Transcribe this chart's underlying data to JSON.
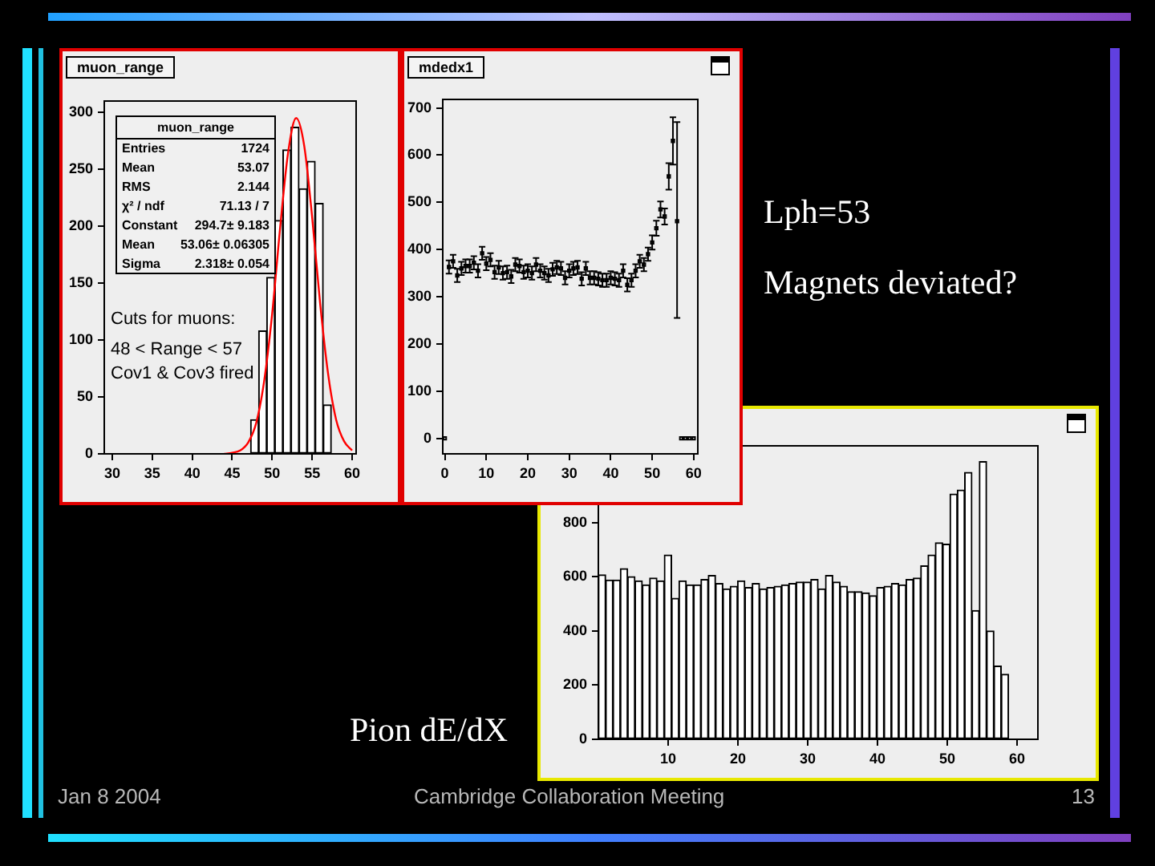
{
  "chart_data": [
    {
      "type": "histogram",
      "title": "muon_range",
      "bins": [
        47.3,
        48.31,
        49.32,
        50.33,
        51.34,
        52.35,
        53.36,
        54.37,
        55.38,
        56.39,
        57.4
      ],
      "values": [
        30,
        108,
        155,
        205,
        267,
        287,
        233,
        257,
        220,
        43
      ],
      "color": "#ffffff",
      "series": [
        {
          "type": "line",
          "color": "#ff0000",
          "x": [
            44,
            45,
            46,
            47,
            48,
            49,
            50,
            51,
            52,
            53,
            54,
            55,
            56,
            57,
            58,
            59,
            60
          ],
          "values": [
            0,
            1,
            3,
            10,
            27,
            64,
            123,
            199,
            265,
            295,
            271,
            208,
            132,
            70,
            30,
            11,
            3
          ]
        }
      ],
      "xlim": [
        29,
        60.5
      ],
      "ylim": [
        0,
        310
      ],
      "xticks": [
        30,
        35,
        40,
        45,
        50,
        55,
        60
      ],
      "yticks": [
        0,
        50,
        100,
        150,
        200,
        250,
        300
      ],
      "annotations": [
        "muon_range",
        "Entries",
        "1724",
        "Mean",
        "53.07",
        "RMS",
        "2.144",
        "χ² / ndf",
        "71.13 / 7",
        "Constant",
        "294.7± 9.183",
        "Mean",
        "53.06± 0.06305",
        "Sigma",
        "2.318± 0.054",
        "Cuts for muons:",
        "48 < Range < 57",
        "Cov1 & Cov3 fired"
      ]
    },
    {
      "type": "scatter",
      "title": "mdedx1",
      "x": [
        0,
        1,
        2,
        3,
        4,
        5,
        6,
        7,
        8,
        9,
        10,
        11,
        12,
        13,
        14,
        15,
        16,
        17,
        18,
        19,
        20,
        21,
        22,
        23,
        24,
        25,
        26,
        27,
        28,
        29,
        30,
        31,
        32,
        33,
        34,
        35,
        36,
        37,
        38,
        39,
        40,
        41,
        42,
        43,
        44,
        45,
        46,
        47,
        48,
        49,
        50,
        51,
        52,
        53,
        54,
        55,
        56,
        57,
        58,
        59,
        60
      ],
      "values": [
        0,
        363,
        375,
        345,
        360,
        365,
        365,
        372,
        355,
        392,
        370,
        378,
        352,
        362,
        350,
        352,
        343,
        368,
        365,
        352,
        355,
        350,
        368,
        355,
        350,
        345,
        358,
        362,
        360,
        340,
        355,
        360,
        362,
        338,
        360,
        340,
        340,
        338,
        335,
        335,
        340,
        338,
        335,
        355,
        325,
        335,
        355,
        375,
        368,
        390,
        415,
        445,
        485,
        470,
        555,
        630,
        460,
        0,
        0,
        0,
        0
      ],
      "errors": [
        null,
        14,
        14,
        14,
        14,
        14,
        14,
        14,
        14,
        14,
        14,
        14,
        14,
        14,
        14,
        14,
        14,
        14,
        14,
        14,
        14,
        14,
        14,
        14,
        14,
        14,
        14,
        14,
        14,
        14,
        14,
        14,
        14,
        14,
        14,
        14,
        14,
        14,
        14,
        14,
        14,
        14,
        14,
        14,
        14,
        14,
        14,
        14,
        14,
        14,
        15,
        16,
        17,
        17,
        28,
        50,
        [
          255,
          670
        ],
        null,
        null,
        null,
        null
      ],
      "color": "#000000",
      "marker": "square",
      "xlim": [
        -0.5,
        61
      ],
      "ylim": [
        -33,
        718
      ],
      "xticks": [
        0,
        10,
        20,
        30,
        40,
        50,
        60
      ],
      "yticks": [
        0,
        100,
        200,
        300,
        400,
        500,
        600,
        700
      ]
    },
    {
      "type": "histogram",
      "title": "Pion dE/dX",
      "bins": [
        0,
        1.05,
        2.1,
        3.15,
        4.2,
        5.25,
        6.3,
        7.35,
        8.4,
        9.45,
        10.5,
        11.55,
        12.6,
        13.65,
        14.7,
        15.75,
        16.8,
        17.85,
        18.9,
        19.95,
        21,
        22.05,
        23.1,
        24.15,
        25.2,
        26.25,
        27.3,
        28.35,
        29.4,
        30.45,
        31.5,
        32.55,
        33.6,
        34.65,
        35.7,
        36.75,
        37.8,
        38.85,
        39.9,
        40.95,
        42,
        43.05,
        44.1,
        45.15,
        46.2,
        47.25,
        48.3,
        49.35,
        50.4,
        51.45,
        52.5,
        53.55,
        54.6,
        55.65,
        56.7,
        57.75,
        58.8,
        59.85,
        60.9,
        61.95,
        63
      ],
      "values": [
        607,
        588,
        588,
        630,
        600,
        585,
        570,
        595,
        585,
        680,
        520,
        585,
        570,
        570,
        590,
        605,
        575,
        555,
        565,
        585,
        560,
        575,
        555,
        560,
        565,
        570,
        575,
        580,
        580,
        590,
        555,
        605,
        580,
        565,
        545,
        545,
        540,
        530,
        560,
        565,
        575,
        570,
        590,
        595,
        640,
        680,
        725,
        720,
        905,
        920,
        985,
        475,
        1025,
        400,
        270,
        240,
        0,
        0,
        0,
        0
      ],
      "color": "#ffffff",
      "xlim": [
        0,
        63
      ],
      "ylim": [
        0,
        1083
      ],
      "xticks": [
        10,
        20,
        30,
        40,
        50,
        60
      ],
      "yticks": [
        0,
        200,
        400,
        600,
        800
      ]
    },
    {
      "type": "other",
      "annotations": [
        "Lph=53",
        "Magnets deviated?",
        "Jan 8 2004",
        "Cambridge Collaboration Meeting",
        "13"
      ]
    }
  ]
}
